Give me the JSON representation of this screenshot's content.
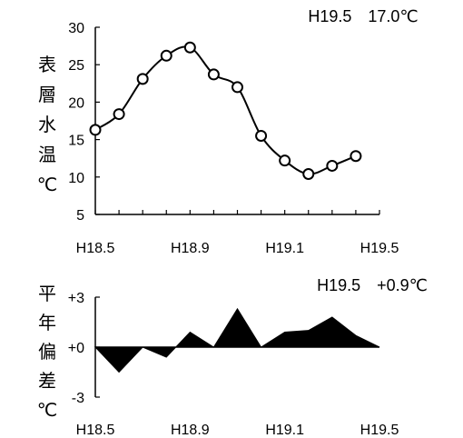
{
  "chart_data": [
    {
      "type": "line",
      "ylabel_chars": [
        "表",
        "層",
        "水",
        "温",
        "℃"
      ],
      "annotation": "H19.5　17.0℃",
      "x_tick_labels": [
        "H18.5",
        "H18.9",
        "H19.1",
        "H19.5"
      ],
      "y_tick_labels": [
        "5",
        "10",
        "15",
        "20",
        "25",
        "30"
      ],
      "ylim": [
        5,
        30
      ],
      "x_month_index_range": [
        0,
        12
      ],
      "marker": "circle",
      "grid": false,
      "series": [
        {
          "x": [
            0,
            1,
            2,
            3,
            4,
            5,
            6,
            7,
            8,
            9,
            10,
            11
          ],
          "values": [
            16.3,
            18.4,
            23.1,
            26.2,
            27.3,
            23.7,
            22.0,
            15.5,
            12.2,
            10.4,
            11.5,
            12.8
          ]
        }
      ]
    },
    {
      "type": "area",
      "ylabel_chars": [
        "平",
        "年",
        "偏",
        "差",
        "℃"
      ],
      "annotation": "H19.5　+0.9℃",
      "x_tick_labels": [
        "H18.5",
        "H18.9",
        "H19.1",
        "H19.5"
      ],
      "y_tick_labels": [
        "+3",
        "+0",
        "-3"
      ],
      "y_tick_values": [
        3,
        0,
        -3
      ],
      "ylim": [
        -3,
        3
      ],
      "x_month_index_range": [
        0,
        12
      ],
      "grid": false,
      "series": [
        {
          "x": [
            0,
            1,
            2,
            3,
            4,
            5,
            6,
            7,
            8,
            9,
            10,
            11,
            12
          ],
          "values": [
            0.0,
            -1.5,
            0.0,
            -0.6,
            0.9,
            0.0,
            2.3,
            0.0,
            0.9,
            1.0,
            1.8,
            0.7,
            0.0
          ]
        }
      ]
    }
  ]
}
